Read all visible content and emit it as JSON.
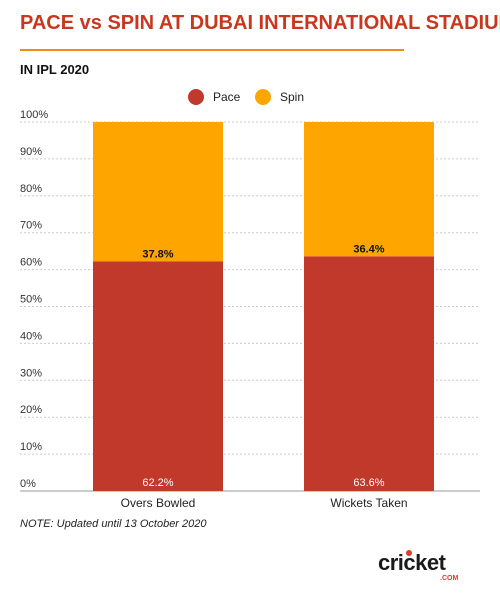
{
  "header": {
    "title": "PACE vs SPIN AT DUBAI INTERNATIONAL STADIUM",
    "subtitle": "IN IPL 2020"
  },
  "footer": {
    "note": "NOTE: Updated until 13 October 2020",
    "logo_text": "cricket",
    "logo_sub": ".COM"
  },
  "colors": {
    "accent": "#c8371e",
    "pace": "#c0392b",
    "spin": "#ffa500",
    "rule": "#f08a1c"
  },
  "chart_data": {
    "type": "bar",
    "stacked": true,
    "percent": true,
    "categories": [
      "Overs Bowled",
      "Wickets Taken"
    ],
    "series": [
      {
        "name": "Pace",
        "color": "#c0392b",
        "values": [
          62.2,
          63.6
        ]
      },
      {
        "name": "Spin",
        "color": "#ffa500",
        "values": [
          37.8,
          36.4
        ]
      }
    ],
    "data_labels": {
      "Pace": [
        "62.2%",
        "63.6%"
      ],
      "Spin": [
        "37.8%",
        "36.4%"
      ]
    },
    "ylim": [
      0,
      100
    ],
    "yticks": [
      "0%",
      "10%",
      "20%",
      "30%",
      "40%",
      "50%",
      "60%",
      "70%",
      "80%",
      "90%",
      "100%"
    ],
    "grid": true,
    "legend": "top-center",
    "title": "PACE vs SPIN AT DUBAI INTERNATIONAL STADIUM",
    "xlabel": "",
    "ylabel": ""
  }
}
